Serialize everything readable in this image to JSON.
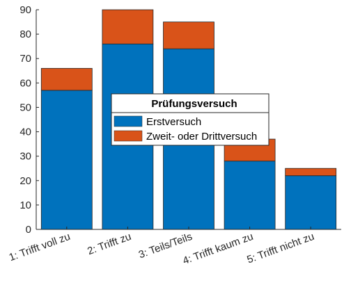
{
  "chart_data": {
    "type": "bar",
    "stacked": true,
    "categories": [
      "1: Trifft voll zu",
      "2: Trifft zu",
      "3: Teils/Teils",
      "4: Trifft kaum zu",
      "5: Trifft nicht zu"
    ],
    "series": [
      {
        "name": "Erstversuch",
        "values": [
          57,
          76,
          74,
          28,
          22
        ],
        "color": "#0072BD"
      },
      {
        "name": "Zweit- oder Drittversuch",
        "values": [
          9,
          14,
          11,
          9,
          3
        ],
        "color": "#D95319"
      }
    ],
    "ylim": [
      0,
      90
    ],
    "yticks": [
      0,
      10,
      20,
      30,
      40,
      50,
      60,
      70,
      80,
      90
    ],
    "legend": {
      "title": "Prüfungsversuch",
      "placement": "center"
    },
    "grid": false
  }
}
